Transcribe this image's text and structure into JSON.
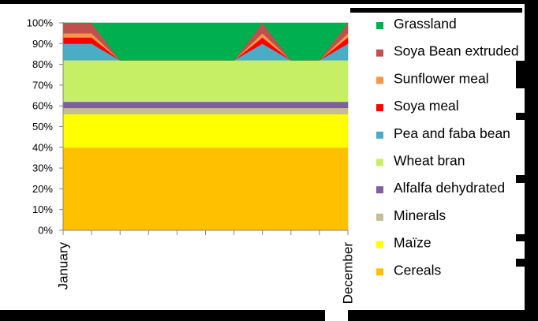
{
  "chart_data": {
    "type": "area",
    "stacked": true,
    "percent": true,
    "x_labels": [
      "January",
      "",
      "",
      "",
      "",
      "",
      "",
      "",
      "",
      "",
      "December"
    ],
    "y_ticks": [
      "0%",
      "10%",
      "20%",
      "30%",
      "40%",
      "50%",
      "60%",
      "70%",
      "80%",
      "90%",
      "100%"
    ],
    "ylim": [
      0,
      100
    ],
    "legend_position": "right",
    "series": [
      {
        "name": "Cereals",
        "color": "#ffc000",
        "values": [
          40,
          40,
          40,
          40,
          40,
          40,
          40,
          40,
          40,
          40,
          40
        ]
      },
      {
        "name": "Maïze",
        "color": "#ffff00",
        "values": [
          16,
          16,
          16,
          16,
          16,
          16,
          16,
          16,
          16,
          16,
          16
        ]
      },
      {
        "name": "Minerals",
        "color": "#c4bd97",
        "values": [
          3,
          3,
          3,
          3,
          3,
          3,
          3,
          3,
          3,
          3,
          3
        ]
      },
      {
        "name": "Alfalfa dehydrated",
        "color": "#7f5f9f",
        "values": [
          3,
          3,
          3,
          3,
          3,
          3,
          3,
          3,
          3,
          3,
          3
        ]
      },
      {
        "name": "Wheat bran",
        "color": "#c6ef66",
        "values": [
          20,
          20,
          20,
          20,
          20,
          20,
          20,
          20,
          20,
          20,
          20
        ]
      },
      {
        "name": "Pea and faba bean",
        "color": "#4bacc6",
        "values": [
          8,
          8,
          0,
          0,
          0,
          0,
          0,
          8,
          0,
          0,
          8
        ]
      },
      {
        "name": "Soya meal",
        "color": "#ff0000",
        "values": [
          3,
          3,
          0,
          0,
          0,
          0,
          0,
          3,
          0,
          0,
          3
        ]
      },
      {
        "name": "Sunflower meal",
        "color": "#f79646",
        "values": [
          2,
          2,
          0,
          0,
          0,
          0,
          0,
          2,
          0,
          0,
          2
        ]
      },
      {
        "name": "Soya Bean extruded",
        "color": "#c0504d",
        "values": [
          5,
          5,
          0,
          0,
          0,
          0,
          0,
          5,
          0,
          0,
          5
        ]
      },
      {
        "name": "Grassland",
        "color": "#00b050",
        "values": [
          0,
          0,
          18,
          18,
          18,
          18,
          18,
          0,
          18,
          18,
          0
        ]
      }
    ]
  }
}
